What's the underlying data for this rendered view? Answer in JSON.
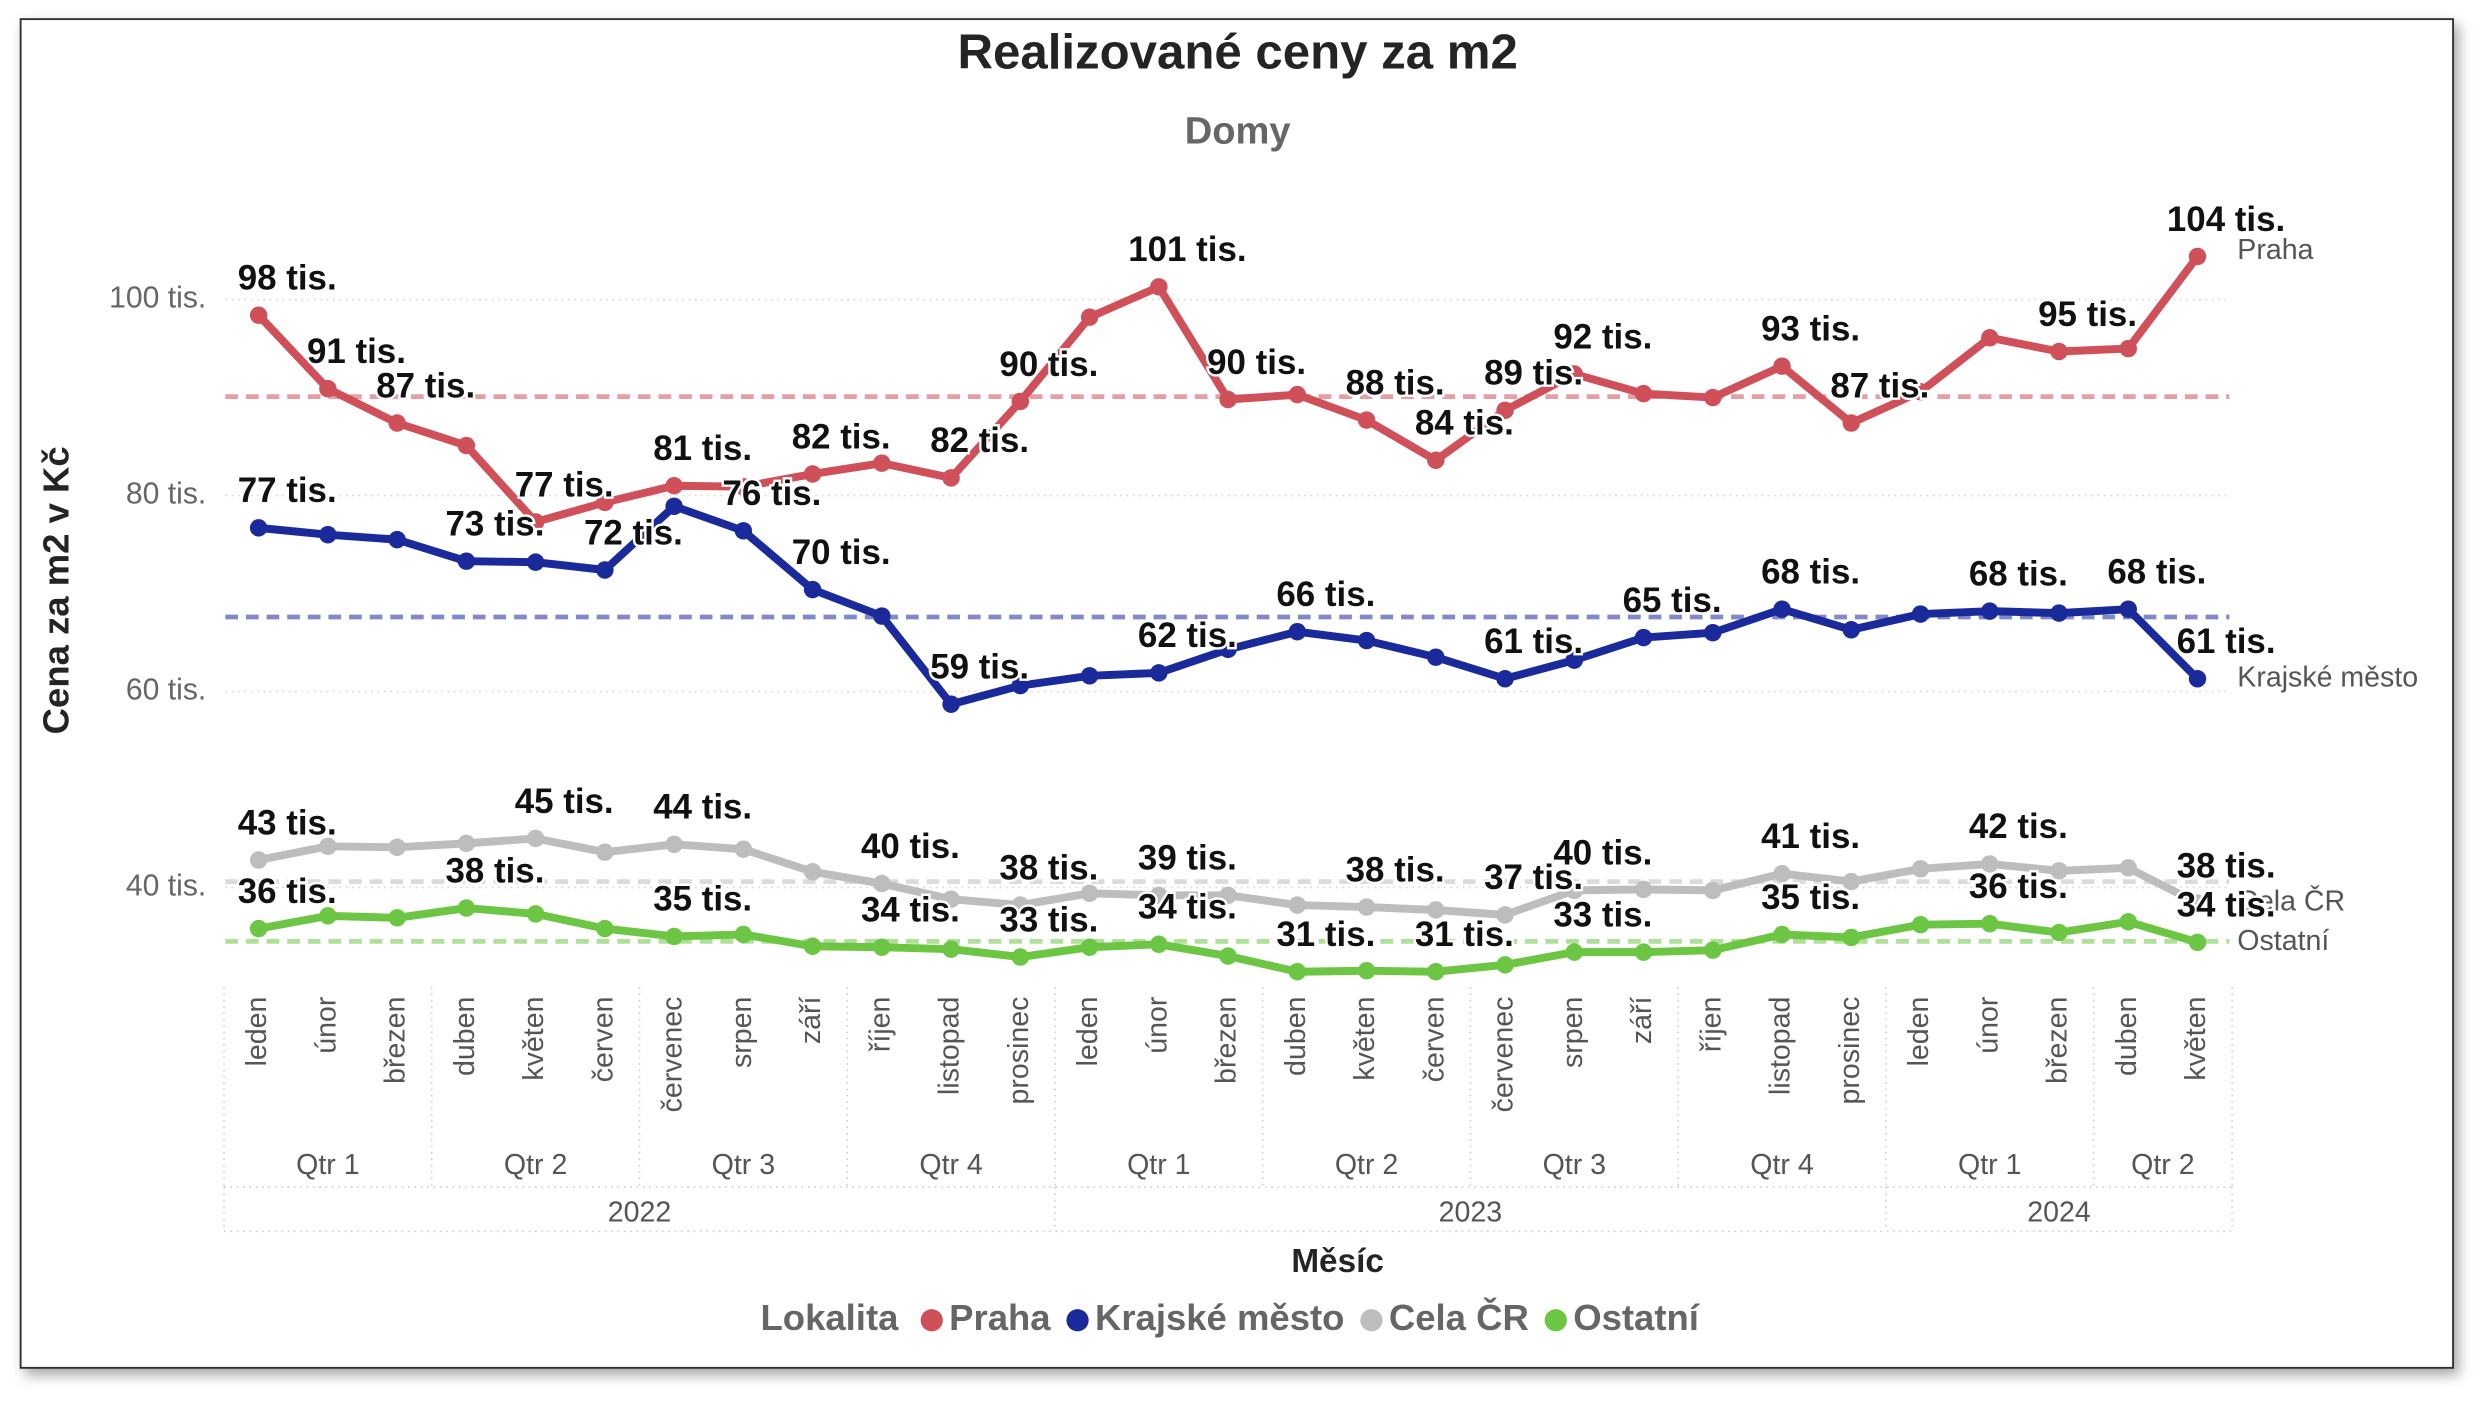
{
  "chart_data": {
    "type": "line",
    "title": "Realizované ceny za m2",
    "subtitle": "Domy",
    "y_label": "Cena za m2 v Kč",
    "x_label": "Měsíc",
    "legend_title": "Lokalita",
    "categories": [
      "leden",
      "únor",
      "březen",
      "duben",
      "květen",
      "červen",
      "červenec",
      "srpen",
      "září",
      "říjen",
      "listopad",
      "prosinec",
      "leden",
      "únor",
      "březen",
      "duben",
      "květen",
      "červen",
      "červenec",
      "srpen",
      "září",
      "říjen",
      "listopad",
      "prosinec",
      "leden",
      "únor",
      "březen",
      "duben",
      "květen"
    ],
    "quarters": [
      "Qtr 1",
      "Qtr 1",
      "Qtr 1",
      "Qtr 2",
      "Qtr 2",
      "Qtr 2",
      "Qtr 3",
      "Qtr 3",
      "Qtr 3",
      "Qtr 4",
      "Qtr 4",
      "Qtr 4",
      "Qtr 1",
      "Qtr 1",
      "Qtr 1",
      "Qtr 2",
      "Qtr 2",
      "Qtr 2",
      "Qtr 3",
      "Qtr 3",
      "Qtr 3",
      "Qtr 4",
      "Qtr 4",
      "Qtr 4",
      "Qtr 1",
      "Qtr 1",
      "Qtr 1",
      "Qtr 2",
      "Qtr 2"
    ],
    "years": [
      "2022",
      "2022",
      "2022",
      "2022",
      "2022",
      "2022",
      "2022",
      "2022",
      "2022",
      "2022",
      "2022",
      "2022",
      "2023",
      "2023",
      "2023",
      "2023",
      "2023",
      "2023",
      "2023",
      "2023",
      "2023",
      "2023",
      "2023",
      "2023",
      "2024",
      "2024",
      "2024",
      "2024",
      "2024"
    ],
    "ylim": [
      30,
      110
    ],
    "yticks": [
      {
        "value": 40,
        "label": "40 tis."
      },
      {
        "value": 60,
        "label": "60 tis."
      },
      {
        "value": 80,
        "label": "80 tis."
      },
      {
        "value": 100,
        "label": "100 tis."
      }
    ],
    "grid": true,
    "legend": "bottom",
    "series": [
      {
        "name": "Praha",
        "color": "#d0505a",
        "average": 90.1,
        "values": [
          98.4,
          90.9,
          87.4,
          85.1,
          77.3,
          79.3,
          81.0,
          80.9,
          82.2,
          83.3,
          81.8,
          89.6,
          98.2,
          101.3,
          89.8,
          90.3,
          87.7,
          83.6,
          88.7,
          92.4,
          90.4,
          90.0,
          93.2,
          87.4,
          90.6,
          96.1,
          94.7,
          95.0,
          104.4
        ],
        "value_labels": [
          "98 tis.",
          "91 tis.",
          "87 tis.",
          null,
          "77 tis.",
          null,
          "81 tis.",
          null,
          "82 tis.",
          null,
          "82 tis.",
          "90 tis.",
          null,
          "101 tis.",
          "90 tis.",
          null,
          "88 tis.",
          "84 tis.",
          "89 tis.",
          "92 tis.",
          null,
          null,
          "93 tis.",
          "87 tis.",
          null,
          null,
          "95 tis.",
          null,
          "104 tis."
        ]
      },
      {
        "name": "Krajské město",
        "color": "#1a2a9a",
        "average": 67.6,
        "values": [
          76.7,
          76.0,
          75.5,
          73.3,
          73.2,
          72.4,
          78.9,
          76.4,
          70.4,
          67.7,
          58.7,
          60.6,
          61.6,
          61.9,
          64.3,
          66.1,
          65.2,
          63.5,
          61.3,
          63.2,
          65.5,
          66.0,
          68.4,
          66.3,
          67.9,
          68.2,
          68.0,
          68.4,
          61.3
        ],
        "value_labels": [
          "77 tis.",
          null,
          null,
          "73 tis.",
          null,
          "72 tis.",
          null,
          "76 tis.",
          "70 tis.",
          null,
          "59 tis.",
          null,
          null,
          "62 tis.",
          null,
          "66 tis.",
          null,
          null,
          "61 tis.",
          null,
          "65 tis.",
          null,
          "68 tis.",
          null,
          null,
          "68 tis.",
          null,
          "68 tis.",
          "61 tis."
        ]
      },
      {
        "name": "Cela ČR",
        "color": "#bdbdbd",
        "average": 40.6,
        "values": [
          42.8,
          44.2,
          44.1,
          44.5,
          45.0,
          43.6,
          44.4,
          43.9,
          41.6,
          40.4,
          38.8,
          38.2,
          39.4,
          39.2,
          39.2,
          38.2,
          38.0,
          37.7,
          37.2,
          39.7,
          39.8,
          39.7,
          41.4,
          40.6,
          41.9,
          42.4,
          41.7,
          42.0,
          38.4
        ],
        "value_labels": [
          "43 tis.",
          null,
          null,
          null,
          "45 tis.",
          null,
          "44 tis.",
          null,
          null,
          "40 tis.",
          null,
          "38 tis.",
          null,
          "39 tis.",
          null,
          null,
          "38 tis.",
          null,
          "37 tis.",
          "40 tis.",
          null,
          null,
          "41 tis.",
          null,
          null,
          "42 tis.",
          null,
          null,
          "38 tis."
        ]
      },
      {
        "name": "Ostatní",
        "color": "#6cc644",
        "average": 34.5,
        "values": [
          35.8,
          37.1,
          36.9,
          37.9,
          37.3,
          35.8,
          35.0,
          35.2,
          34.0,
          33.9,
          33.7,
          32.9,
          33.9,
          34.2,
          33.0,
          31.4,
          31.5,
          31.4,
          32.1,
          33.4,
          33.4,
          33.6,
          35.2,
          34.9,
          36.2,
          36.3,
          35.4,
          36.5,
          34.4
        ],
        "value_labels": [
          "36 tis.",
          null,
          null,
          "38 tis.",
          null,
          null,
          "35 tis.",
          null,
          null,
          "34 tis.",
          null,
          "33 tis.",
          null,
          "34 tis.",
          null,
          "31 tis.",
          null,
          "31 tis.",
          null,
          "33 tis.",
          null,
          null,
          "35 tis.",
          null,
          null,
          "36 tis.",
          null,
          null,
          "34 tis."
        ]
      }
    ]
  }
}
